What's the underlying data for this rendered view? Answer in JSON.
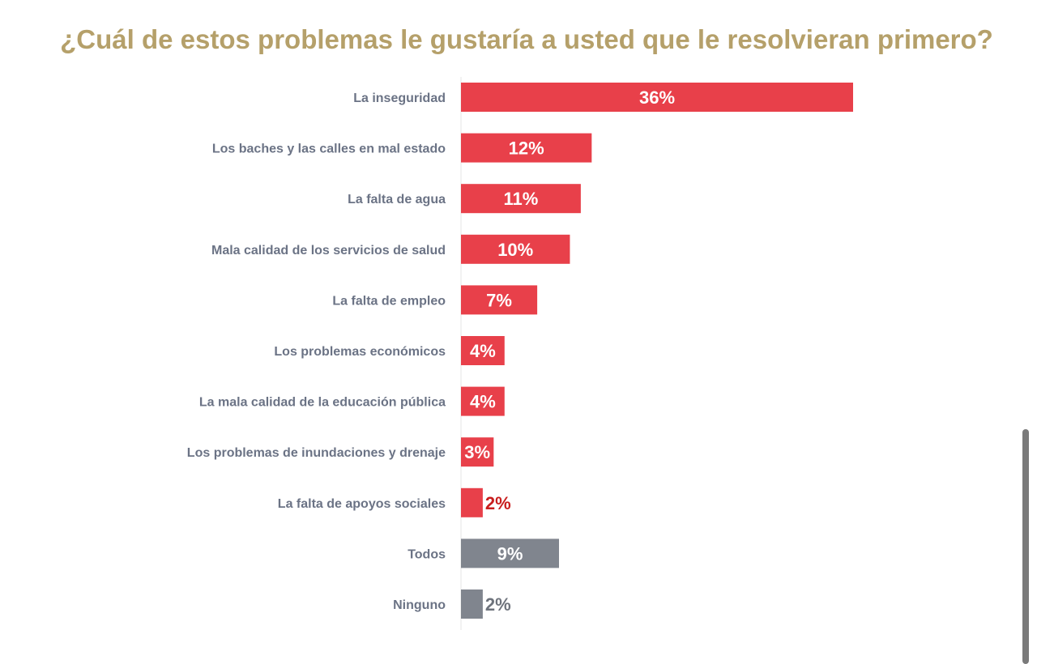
{
  "chart_data": {
    "type": "bar",
    "orientation": "horizontal",
    "title": "¿Cuál de estos problemas le gustaría a usted que le resolvieran primero?",
    "xlabel": "",
    "ylabel": "",
    "xlim": [
      0,
      36
    ],
    "grid": false,
    "legend": "none",
    "categories": [
      "La inseguridad",
      "Los baches y las calles en mal estado",
      "La falta de agua",
      "Mala calidad de los servicios de salud",
      "La falta de empleo",
      "Los problemas económicos",
      "La mala calidad de la educación pública",
      "Los problemas de inundaciones y drenaje",
      "La falta de apoyos sociales",
      "Todos",
      "Ninguno"
    ],
    "values": [
      36,
      12,
      11,
      10,
      7,
      4,
      4,
      3,
      2,
      9,
      2
    ],
    "value_labels": [
      "36%",
      "12%",
      "11%",
      "10%",
      "7%",
      "4%",
      "4%",
      "3%",
      "2%",
      "9%",
      "2%"
    ],
    "bar_colors": [
      "#e8404a",
      "#e8404a",
      "#e8404a",
      "#e8404a",
      "#e8404a",
      "#e8404a",
      "#e8404a",
      "#e8404a",
      "#e8404a",
      "#80858e",
      "#80858e"
    ],
    "label_colors": [
      "#ffffff",
      "#ffffff",
      "#ffffff",
      "#ffffff",
      "#ffffff",
      "#ffffff",
      "#ffffff",
      "#ffffff",
      "#c81e1e",
      "#ffffff",
      "#6e737c"
    ]
  },
  "colors": {
    "title": "#b5a06a",
    "category_text": "#6b7385",
    "axis": "#e4e4e4"
  }
}
